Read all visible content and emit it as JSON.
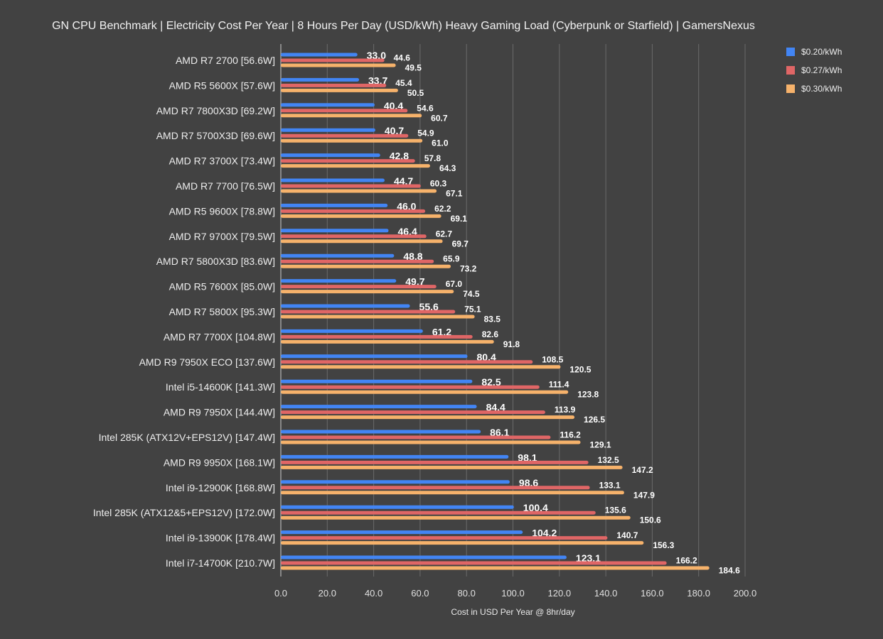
{
  "chart_data": {
    "type": "bar",
    "orientation": "horizontal",
    "title": "GN CPU Benchmark | Electricity Cost Per Year | 8 Hours Per Day (USD/kWh) Heavy Gaming Load (Cyberpunk or Starfield) | GamersNexus",
    "xlabel": "Cost in USD Per Year @ 8hr/day",
    "ylabel": "",
    "xlim": [
      0,
      200
    ],
    "xticks": [
      "0.0",
      "20.0",
      "40.0",
      "60.0",
      "80.0",
      "100.0",
      "120.0",
      "140.0",
      "160.0",
      "180.0",
      "200.0"
    ],
    "grid": true,
    "legend_position": "top-right",
    "categories": [
      "AMD R7 2700 [56.6W]",
      "AMD R5 5600X [57.6W]",
      "AMD R7 7800X3D [69.2W]",
      "AMD R7 5700X3D [69.6W]",
      "AMD R7 3700X [73.4W]",
      "AMD R7 7700 [76.5W]",
      "AMD R5 9600X [78.8W]",
      "AMD R7 9700X [79.5W]",
      "AMD R7 5800X3D [83.6W]",
      "AMD R5 7600X [85.0W]",
      "AMD R7 5800X [95.3W]",
      "AMD R7 7700X [104.8W]",
      "AMD R9 7950X ECO [137.6W]",
      "Intel i5-14600K [141.3W]",
      "AMD R9 7950X [144.4W]",
      "Intel 285K (ATX12V+EPS12V) [147.4W]",
      "AMD R9 9950X [168.1W]",
      "Intel i9-12900K [168.8W]",
      "Intel 285K (ATX12&5+EPS12V) [172.0W]",
      "Intel i9-13900K [178.4W]",
      "Intel i7-14700K [210.7W]"
    ],
    "series": [
      {
        "name": "$0.20/kWh",
        "color": "#4285f4",
        "values": [
          33.0,
          33.7,
          40.4,
          40.7,
          42.8,
          44.7,
          46.0,
          46.4,
          48.8,
          49.7,
          55.6,
          61.2,
          80.4,
          82.5,
          84.4,
          86.1,
          98.1,
          98.6,
          100.4,
          104.2,
          123.1
        ]
      },
      {
        "name": "$0.27/kWh",
        "color": "#e06666",
        "values": [
          44.6,
          45.4,
          54.6,
          54.9,
          57.8,
          60.3,
          62.2,
          62.7,
          65.9,
          67.0,
          75.1,
          82.6,
          108.5,
          111.4,
          113.9,
          116.2,
          132.5,
          133.1,
          135.6,
          140.7,
          166.2
        ]
      },
      {
        "name": "$0.30/kWh",
        "color": "#f6b26b",
        "values": [
          49.5,
          50.5,
          60.7,
          61.0,
          64.3,
          67.1,
          69.1,
          69.7,
          73.2,
          74.5,
          83.5,
          91.8,
          120.5,
          123.8,
          126.5,
          129.1,
          147.2,
          147.9,
          150.6,
          156.3,
          184.6
        ]
      }
    ]
  }
}
